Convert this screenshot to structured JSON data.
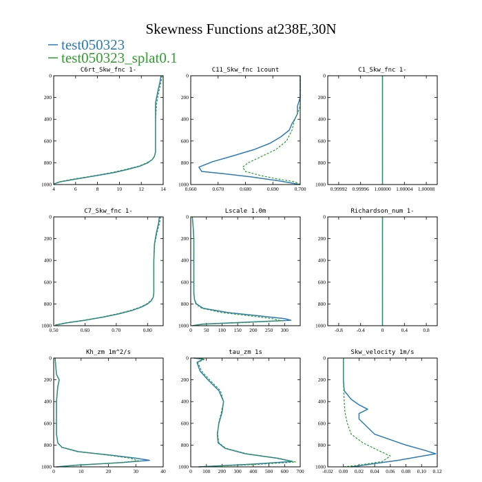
{
  "figure_title": "Skewness Functions at238E,30N",
  "legend": [
    {
      "label": "test050323",
      "color": "#2a7ab8",
      "dash": "none"
    },
    {
      "label": "test050323_splat0.1",
      "color": "#2ca02c",
      "dash": "dashed"
    }
  ],
  "chart_data": [
    {
      "type": "line",
      "title": "C6rt_Skw_fnc   1-",
      "xlim": [
        4,
        14
      ],
      "ylim": [
        1000,
        0
      ],
      "xticks": [
        4,
        6,
        8,
        10,
        12,
        14
      ],
      "xtick_labels": [
        "4",
        "6",
        "8",
        "10",
        "12",
        "14"
      ],
      "yticks": [
        0,
        200,
        400,
        600,
        800,
        1000
      ],
      "series": [
        {
          "name": "test050323",
          "x": [
            13.8,
            13.7,
            13.5,
            13.3,
            13.3,
            13.3,
            13.3,
            13.2,
            13.0,
            12.6,
            11.9,
            10.8,
            9.5,
            7.8,
            6.0,
            4.6,
            4.0
          ],
          "y": [
            0,
            60,
            150,
            250,
            400,
            550,
            700,
            740,
            770,
            800,
            830,
            860,
            890,
            920,
            950,
            975,
            995
          ]
        },
        {
          "name": "test050323_splat0.1",
          "x": [
            13.9,
            13.8,
            13.6,
            13.4,
            13.3,
            13.3,
            13.3,
            13.2,
            13.0,
            12.5,
            11.8,
            10.6,
            9.3,
            7.6,
            5.8,
            4.5,
            4.0
          ],
          "y": [
            0,
            60,
            150,
            250,
            400,
            550,
            700,
            740,
            770,
            800,
            830,
            860,
            890,
            920,
            950,
            975,
            995
          ]
        }
      ]
    },
    {
      "type": "line",
      "title": "C11_Skw_fnc   1count",
      "xlim": [
        0.66,
        0.7
      ],
      "ylim": [
        1000,
        0
      ],
      "xticks": [
        0.66,
        0.67,
        0.68,
        0.69,
        0.7
      ],
      "xtick_labels": [
        "0.660",
        "0.670",
        "0.680",
        "0.690",
        "0.700"
      ],
      "yticks": [
        0,
        200,
        400,
        600,
        800,
        1000
      ],
      "series": [
        {
          "name": "test050323",
          "x": [
            0.7,
            0.7,
            0.7,
            0.699,
            0.699,
            0.698,
            0.697,
            0.696,
            0.693,
            0.689,
            0.683,
            0.675,
            0.668,
            0.663,
            0.664,
            0.672,
            0.682,
            0.692,
            0.7
          ],
          "y": [
            0,
            100,
            200,
            280,
            350,
            400,
            440,
            500,
            560,
            620,
            680,
            740,
            790,
            840,
            880,
            900,
            930,
            965,
            1000
          ]
        },
        {
          "name": "test050323_splat0.1",
          "x": [
            0.7,
            0.7,
            0.7,
            0.7,
            0.699,
            0.698,
            0.697,
            0.695,
            0.691,
            0.686,
            0.681,
            0.679,
            0.68,
            0.686,
            0.692,
            0.698,
            0.7
          ],
          "y": [
            0,
            100,
            200,
            280,
            350,
            400,
            500,
            600,
            680,
            740,
            800,
            840,
            880,
            920,
            950,
            975,
            1000
          ]
        }
      ]
    },
    {
      "type": "line",
      "title": "C1_Skw_fnc   1-",
      "xlim": [
        0.9999,
        1.0001
      ],
      "ylim": [
        1000,
        0
      ],
      "xticks": [
        0.99992,
        0.99996,
        1.0,
        1.00004,
        1.00008
      ],
      "xtick_labels": [
        "0.99992",
        "0.99996",
        "1.00000",
        "1.00004",
        "1.00008"
      ],
      "yticks": [
        0,
        200,
        400,
        600,
        800,
        1000
      ],
      "series": [
        {
          "name": "test050323",
          "x": [
            1.0,
            1.0
          ],
          "y": [
            0,
            1000
          ]
        },
        {
          "name": "test050323_splat0.1",
          "x": [
            1.0,
            1.0
          ],
          "y": [
            0,
            1000
          ]
        }
      ]
    },
    {
      "type": "line",
      "title": "C7_Skw_fnc   1-",
      "xlim": [
        0.5,
        0.85
      ],
      "ylim": [
        1000,
        0
      ],
      "xticks": [
        0.5,
        0.6,
        0.7,
        0.8
      ],
      "xtick_labels": [
        "0.50",
        "0.60",
        "0.70",
        "0.80"
      ],
      "yticks": [
        0,
        200,
        400,
        600,
        800,
        1000
      ],
      "series": [
        {
          "name": "test050323",
          "x": [
            0.838,
            0.835,
            0.828,
            0.822,
            0.82,
            0.82,
            0.82,
            0.818,
            0.812,
            0.8,
            0.78,
            0.75,
            0.71,
            0.66,
            0.6,
            0.54,
            0.505
          ],
          "y": [
            0,
            60,
            150,
            250,
            400,
            550,
            700,
            740,
            770,
            800,
            830,
            860,
            890,
            920,
            950,
            975,
            995
          ]
        },
        {
          "name": "test050323_splat0.1",
          "x": [
            0.842,
            0.838,
            0.83,
            0.823,
            0.82,
            0.82,
            0.82,
            0.818,
            0.81,
            0.797,
            0.776,
            0.745,
            0.705,
            0.655,
            0.595,
            0.535,
            0.502
          ],
          "y": [
            0,
            60,
            150,
            250,
            400,
            550,
            700,
            740,
            770,
            800,
            830,
            860,
            890,
            920,
            950,
            975,
            995
          ]
        }
      ]
    },
    {
      "type": "line",
      "title": "Lscale   1.0m",
      "xlim": [
        0,
        350
      ],
      "ylim": [
        1000,
        0
      ],
      "xticks": [
        0,
        50,
        100,
        150,
        200,
        250,
        300
      ],
      "xtick_labels": [
        "0",
        "50",
        "100",
        "150",
        "200",
        "250",
        "300"
      ],
      "yticks": [
        0,
        200,
        400,
        600,
        800,
        1000
      ],
      "series": [
        {
          "name": "test050323",
          "x": [
            5,
            8,
            10,
            10,
            10,
            10,
            12,
            18,
            40,
            120,
            220,
            300,
            320,
            200,
            40,
            5
          ],
          "y": [
            0,
            100,
            200,
            400,
            600,
            700,
            760,
            800,
            840,
            880,
            910,
            935,
            950,
            965,
            985,
            1000
          ]
        },
        {
          "name": "test050323_splat0.1",
          "x": [
            5,
            8,
            10,
            10,
            10,
            10,
            12,
            16,
            35,
            100,
            190,
            260,
            290,
            180,
            30,
            5
          ],
          "y": [
            0,
            100,
            200,
            400,
            600,
            700,
            760,
            800,
            840,
            880,
            910,
            935,
            955,
            970,
            988,
            1000
          ]
        }
      ]
    },
    {
      "type": "line",
      "title": "Richardson_num   1-",
      "xlim": [
        -1,
        1
      ],
      "ylim": [
        1000,
        0
      ],
      "xticks": [
        -0.8,
        -0.4,
        0.0,
        0.4,
        0.8
      ],
      "xtick_labels": [
        "-0.8",
        "-0.4",
        "0",
        "0.4",
        "0.8"
      ],
      "yticks": [
        0,
        200,
        400,
        600,
        800,
        1000
      ],
      "series": [
        {
          "name": "test050323",
          "x": [
            0,
            0
          ],
          "y": [
            0,
            1000
          ]
        },
        {
          "name": "test050323_splat0.1",
          "x": [
            0,
            0
          ],
          "y": [
            0,
            1000
          ]
        }
      ]
    },
    {
      "type": "line",
      "title": "Kh_zm   1m^2/s",
      "xlim": [
        0,
        40
      ],
      "ylim": [
        1000,
        0
      ],
      "xticks": [
        0,
        10,
        20,
        30,
        40
      ],
      "xtick_labels": [
        "0",
        "10",
        "20",
        "30",
        "40"
      ],
      "yticks": [
        0,
        200,
        400,
        600,
        800,
        1000
      ],
      "series": [
        {
          "name": "test050323",
          "x": [
            0.5,
            1.0,
            2.0,
            1.5,
            1.0,
            1.0,
            1.5,
            3.0,
            9.0,
            20.0,
            30.0,
            35.0,
            25.0,
            8.0,
            1.0
          ],
          "y": [
            0,
            150,
            200,
            260,
            400,
            700,
            780,
            820,
            860,
            890,
            920,
            940,
            960,
            985,
            1000
          ]
        },
        {
          "name": "test050323_splat0.1",
          "x": [
            0.5,
            1.0,
            2.0,
            1.5,
            1.0,
            1.0,
            1.5,
            3.0,
            8.5,
            19.0,
            28.0,
            31.0,
            22.0,
            7.0,
            1.0
          ],
          "y": [
            0,
            150,
            200,
            260,
            400,
            700,
            780,
            820,
            860,
            890,
            920,
            945,
            965,
            988,
            1000
          ]
        }
      ]
    },
    {
      "type": "line",
      "title": "tau_zm   1s",
      "xlim": [
        0,
        700
      ],
      "ylim": [
        1000,
        0
      ],
      "xticks": [
        0,
        100,
        200,
        300,
        400,
        500,
        600,
        700
      ],
      "xtick_labels": [
        "0",
        "100",
        "200",
        "300",
        "400",
        "500",
        "600",
        "700"
      ],
      "yticks": [
        0,
        200,
        400,
        600,
        800,
        1000
      ],
      "series": [
        {
          "name": "test050323",
          "x": [
            20,
            80,
            40,
            60,
            110,
            180,
            210,
            200,
            180,
            170,
            175,
            220,
            350,
            550,
            650,
            400,
            50
          ],
          "y": [
            0,
            10,
            40,
            120,
            200,
            300,
            400,
            500,
            600,
            700,
            780,
            830,
            880,
            920,
            950,
            975,
            1000
          ]
        },
        {
          "name": "test050323_splat0.1",
          "x": [
            25,
            90,
            45,
            70,
            120,
            190,
            210,
            195,
            178,
            172,
            180,
            225,
            360,
            560,
            670,
            420,
            50
          ],
          "y": [
            0,
            10,
            40,
            120,
            200,
            300,
            400,
            500,
            600,
            700,
            780,
            830,
            880,
            920,
            955,
            978,
            1000
          ]
        }
      ]
    },
    {
      "type": "line",
      "title": "Skw_velocity   1m/s",
      "xlim": [
        -0.02,
        0.12
      ],
      "ylim": [
        1000,
        0
      ],
      "xticks": [
        -0.02,
        0.0,
        0.02,
        0.04,
        0.06,
        0.08,
        0.1,
        0.12
      ],
      "xtick_labels": [
        "-0.02",
        "0.00",
        "0.02",
        "0.04",
        "0.06",
        "0.08",
        "0.10",
        "0.12"
      ],
      "yticks": [
        0,
        200,
        400,
        600,
        800,
        1000
      ],
      "series": [
        {
          "name": "test050323",
          "x": [
            0.0,
            0.0,
            0.001,
            0.01,
            0.02,
            0.031,
            0.02,
            0.02,
            0.04,
            0.08,
            0.105,
            0.118,
            0.07,
            0.01
          ],
          "y": [
            0,
            200,
            300,
            380,
            430,
            470,
            510,
            560,
            700,
            800,
            850,
            880,
            940,
            1000
          ]
        },
        {
          "name": "test050323_splat0.1",
          "x": [
            0.0,
            0.0,
            0.001,
            0.002,
            0.005,
            0.01,
            0.025,
            0.045,
            0.06,
            0.05,
            0.02,
            0.0
          ],
          "y": [
            0,
            200,
            400,
            500,
            600,
            700,
            780,
            850,
            900,
            950,
            985,
            1000
          ]
        }
      ]
    }
  ]
}
